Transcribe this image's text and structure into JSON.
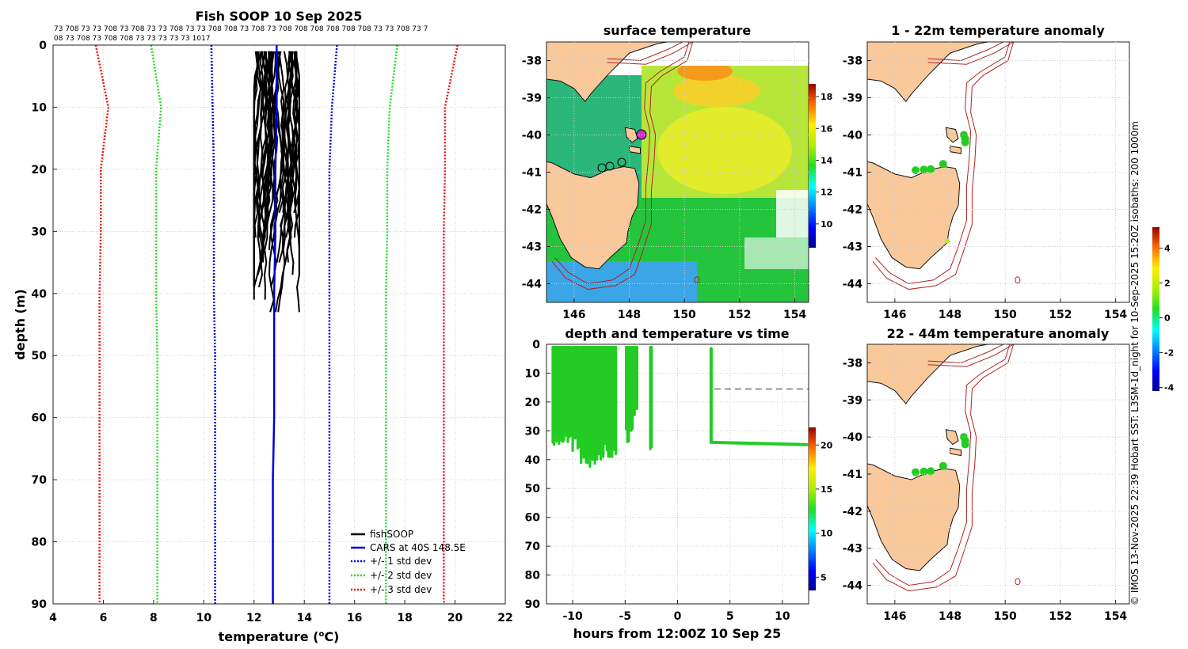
{
  "credit": "© IMOS 13-Nov-2025 22:39 Hobart SST: L3SM-1d_night for 10-Sep-2025 15:20Z isobaths: 200  1000m",
  "colors": {
    "land": "#f9c89b",
    "isobath": "#b22222",
    "profile": "#000000",
    "cars": "#0000dd",
    "std1": "#0000dd",
    "std2": "#22dd22",
    "std3": "#ee1111",
    "points": "#22cc22"
  },
  "chart_data": [
    {
      "id": "profile",
      "type": "line",
      "title": "Fish SOOP 10 Sep 2025",
      "xlabel": "temperature (",
      "xlabel_unit": "o",
      "xlabel_tail": "C)",
      "ylabel": "depth (m)",
      "xlim": [
        4,
        22
      ],
      "ylim": [
        0,
        90
      ],
      "xticks": [
        "4",
        "6",
        "8",
        "10",
        "12",
        "14",
        "16",
        "18",
        "20",
        "22"
      ],
      "yticks": [
        "0",
        "10",
        "20",
        "30",
        "40",
        "50",
        "60",
        "70",
        "80",
        "90"
      ],
      "top_labels": [
        "73 708 73 73 708 73 708 73 73 708 73 73 708 708 73 708 73 708 708 708 708 708 708 73 73 708 73 7",
        "08 73 708 73 708 708 73 73 73 73 73 1017"
      ],
      "legend": [
        "fishSOOP",
        "CARS at 40S 148.5E",
        "+/- 1 std dev",
        "+/- 2 std dev",
        "+/- 3 std dev"
      ],
      "cars": {
        "temps": [
          12.9,
          12.9,
          12.85,
          12.85,
          12.8,
          12.8,
          12.8,
          12.75,
          12.75,
          12.75
        ],
        "depths": [
          0,
          10,
          20,
          30,
          40,
          50,
          60,
          70,
          80,
          90
        ]
      },
      "std_curves": [
        {
          "name": "+/- 1 std dev",
          "left": [
            10.3,
            10.35,
            10.4,
            10.4,
            10.4,
            10.45,
            10.45,
            10.45,
            10.45,
            10.45
          ],
          "right": [
            15.3,
            15.1,
            15.0,
            15.0,
            15.0,
            15.0,
            15.0,
            15.0,
            15.0,
            15.0
          ]
        },
        {
          "name": "+/- 2 std dev",
          "left": [
            7.9,
            8.3,
            8.1,
            8.1,
            8.1,
            8.15,
            8.15,
            8.15,
            8.15,
            8.15
          ],
          "right": [
            17.7,
            17.4,
            17.3,
            17.3,
            17.25,
            17.25,
            17.25,
            17.25,
            17.25,
            17.25
          ]
        },
        {
          "name": "+/- 3 std dev",
          "left": [
            5.7,
            6.2,
            5.9,
            5.9,
            5.85,
            5.85,
            5.85,
            5.85,
            5.85,
            5.85
          ],
          "right": [
            20.1,
            19.6,
            19.6,
            19.55,
            19.55,
            19.55,
            19.55,
            19.55,
            19.55,
            19.55
          ]
        }
      ],
      "fish_profiles_temp_range": [
        12.0,
        13.8
      ],
      "fish_profiles_depth_range": [
        1,
        44
      ]
    },
    {
      "id": "sst",
      "type": "heatmap",
      "title": "surface temperature",
      "xticks": [
        "146",
        "148",
        "150",
        "152",
        "154"
      ],
      "yticks": [
        "-38",
        "-39",
        "-40",
        "-41",
        "-42",
        "-43",
        "-44"
      ],
      "xlim": [
        145,
        154.5
      ],
      "ylim": [
        -44.5,
        -37.5
      ],
      "colorbar": {
        "min": 8.5,
        "max": 18.8,
        "ticks": [
          "10",
          "12",
          "14",
          "16",
          "18"
        ]
      }
    },
    {
      "id": "depth_time",
      "type": "scatter",
      "title": "depth and temperature vs time",
      "xlabel": "hours from 12:00Z 10 Sep 25",
      "xlim": [
        -12.5,
        12.5
      ],
      "ylim": [
        0,
        90
      ],
      "xticks": [
        "-10",
        "-5",
        "0",
        "5",
        "10"
      ],
      "yticks": [
        "0",
        "10",
        "20",
        "30",
        "40",
        "50",
        "60",
        "70",
        "80",
        "90"
      ],
      "colorbar": {
        "min": 3.5,
        "max": 22,
        "ticks": [
          "5",
          "10",
          "15",
          "20"
        ]
      },
      "dashed_line_depth": 15.5,
      "dashed_line_hours": [
        3.5,
        12.5
      ]
    },
    {
      "id": "anom1",
      "type": "scatter",
      "title": "1 - 22m temperature anomaly",
      "xticks": [
        "146",
        "148",
        "150",
        "152",
        "154"
      ],
      "yticks": [
        "-38",
        "-39",
        "-40",
        "-41",
        "-42",
        "-43",
        "-44"
      ],
      "xlim": [
        145,
        154.5
      ],
      "ylim": [
        -44.5,
        -37.5
      ],
      "colorbar": {
        "min": -4.2,
        "max": 5.2,
        "ticks": [
          "4",
          "2",
          "0",
          "-2",
          "-4"
        ]
      }
    },
    {
      "id": "anom2",
      "type": "scatter",
      "title": "22 - 44m temperature anomaly",
      "xticks": [
        "146",
        "148",
        "150",
        "152",
        "154"
      ],
      "yticks": [
        "-38",
        "-39",
        "-40",
        "-41",
        "-42",
        "-43",
        "-44"
      ],
      "xlim": [
        145,
        154.5
      ],
      "ylim": [
        -44.5,
        -37.5
      ]
    }
  ]
}
